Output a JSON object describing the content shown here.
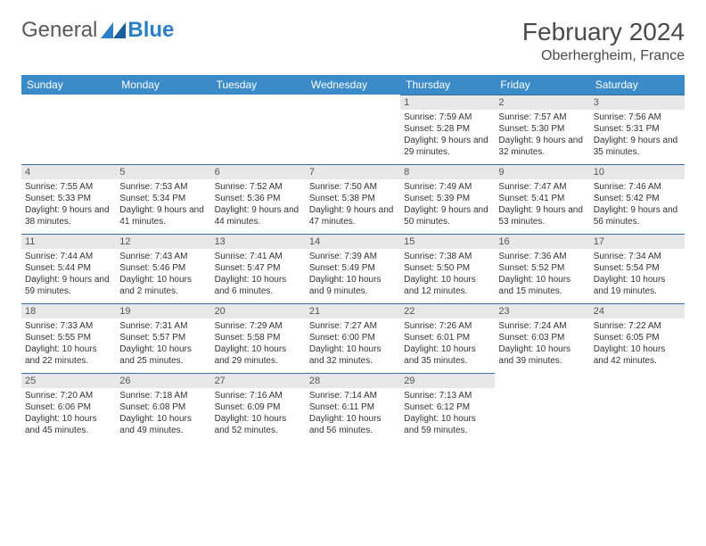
{
  "logo": {
    "text1": "General",
    "text2": "Blue"
  },
  "title": "February 2024",
  "location": "Oberhergheim, France",
  "colors": {
    "header_bg": "#3b8bc9",
    "header_text": "#ffffff",
    "daynum_bg": "#e8e8e8",
    "cell_border": "#3b6ea0",
    "logo_blue": "#2a7fc9"
  },
  "weekdays": [
    "Sunday",
    "Monday",
    "Tuesday",
    "Wednesday",
    "Thursday",
    "Friday",
    "Saturday"
  ],
  "leading_blanks": 4,
  "days": [
    {
      "n": "1",
      "sunrise": "Sunrise: 7:59 AM",
      "sunset": "Sunset: 5:28 PM",
      "daylight": "Daylight: 9 hours and 29 minutes."
    },
    {
      "n": "2",
      "sunrise": "Sunrise: 7:57 AM",
      "sunset": "Sunset: 5:30 PM",
      "daylight": "Daylight: 9 hours and 32 minutes."
    },
    {
      "n": "3",
      "sunrise": "Sunrise: 7:56 AM",
      "sunset": "Sunset: 5:31 PM",
      "daylight": "Daylight: 9 hours and 35 minutes."
    },
    {
      "n": "4",
      "sunrise": "Sunrise: 7:55 AM",
      "sunset": "Sunset: 5:33 PM",
      "daylight": "Daylight: 9 hours and 38 minutes."
    },
    {
      "n": "5",
      "sunrise": "Sunrise: 7:53 AM",
      "sunset": "Sunset: 5:34 PM",
      "daylight": "Daylight: 9 hours and 41 minutes."
    },
    {
      "n": "6",
      "sunrise": "Sunrise: 7:52 AM",
      "sunset": "Sunset: 5:36 PM",
      "daylight": "Daylight: 9 hours and 44 minutes."
    },
    {
      "n": "7",
      "sunrise": "Sunrise: 7:50 AM",
      "sunset": "Sunset: 5:38 PM",
      "daylight": "Daylight: 9 hours and 47 minutes."
    },
    {
      "n": "8",
      "sunrise": "Sunrise: 7:49 AM",
      "sunset": "Sunset: 5:39 PM",
      "daylight": "Daylight: 9 hours and 50 minutes."
    },
    {
      "n": "9",
      "sunrise": "Sunrise: 7:47 AM",
      "sunset": "Sunset: 5:41 PM",
      "daylight": "Daylight: 9 hours and 53 minutes."
    },
    {
      "n": "10",
      "sunrise": "Sunrise: 7:46 AM",
      "sunset": "Sunset: 5:42 PM",
      "daylight": "Daylight: 9 hours and 56 minutes."
    },
    {
      "n": "11",
      "sunrise": "Sunrise: 7:44 AM",
      "sunset": "Sunset: 5:44 PM",
      "daylight": "Daylight: 9 hours and 59 minutes."
    },
    {
      "n": "12",
      "sunrise": "Sunrise: 7:43 AM",
      "sunset": "Sunset: 5:46 PM",
      "daylight": "Daylight: 10 hours and 2 minutes."
    },
    {
      "n": "13",
      "sunrise": "Sunrise: 7:41 AM",
      "sunset": "Sunset: 5:47 PM",
      "daylight": "Daylight: 10 hours and 6 minutes."
    },
    {
      "n": "14",
      "sunrise": "Sunrise: 7:39 AM",
      "sunset": "Sunset: 5:49 PM",
      "daylight": "Daylight: 10 hours and 9 minutes."
    },
    {
      "n": "15",
      "sunrise": "Sunrise: 7:38 AM",
      "sunset": "Sunset: 5:50 PM",
      "daylight": "Daylight: 10 hours and 12 minutes."
    },
    {
      "n": "16",
      "sunrise": "Sunrise: 7:36 AM",
      "sunset": "Sunset: 5:52 PM",
      "daylight": "Daylight: 10 hours and 15 minutes."
    },
    {
      "n": "17",
      "sunrise": "Sunrise: 7:34 AM",
      "sunset": "Sunset: 5:54 PM",
      "daylight": "Daylight: 10 hours and 19 minutes."
    },
    {
      "n": "18",
      "sunrise": "Sunrise: 7:33 AM",
      "sunset": "Sunset: 5:55 PM",
      "daylight": "Daylight: 10 hours and 22 minutes."
    },
    {
      "n": "19",
      "sunrise": "Sunrise: 7:31 AM",
      "sunset": "Sunset: 5:57 PM",
      "daylight": "Daylight: 10 hours and 25 minutes."
    },
    {
      "n": "20",
      "sunrise": "Sunrise: 7:29 AM",
      "sunset": "Sunset: 5:58 PM",
      "daylight": "Daylight: 10 hours and 29 minutes."
    },
    {
      "n": "21",
      "sunrise": "Sunrise: 7:27 AM",
      "sunset": "Sunset: 6:00 PM",
      "daylight": "Daylight: 10 hours and 32 minutes."
    },
    {
      "n": "22",
      "sunrise": "Sunrise: 7:26 AM",
      "sunset": "Sunset: 6:01 PM",
      "daylight": "Daylight: 10 hours and 35 minutes."
    },
    {
      "n": "23",
      "sunrise": "Sunrise: 7:24 AM",
      "sunset": "Sunset: 6:03 PM",
      "daylight": "Daylight: 10 hours and 39 minutes."
    },
    {
      "n": "24",
      "sunrise": "Sunrise: 7:22 AM",
      "sunset": "Sunset: 6:05 PM",
      "daylight": "Daylight: 10 hours and 42 minutes."
    },
    {
      "n": "25",
      "sunrise": "Sunrise: 7:20 AM",
      "sunset": "Sunset: 6:06 PM",
      "daylight": "Daylight: 10 hours and 45 minutes."
    },
    {
      "n": "26",
      "sunrise": "Sunrise: 7:18 AM",
      "sunset": "Sunset: 6:08 PM",
      "daylight": "Daylight: 10 hours and 49 minutes."
    },
    {
      "n": "27",
      "sunrise": "Sunrise: 7:16 AM",
      "sunset": "Sunset: 6:09 PM",
      "daylight": "Daylight: 10 hours and 52 minutes."
    },
    {
      "n": "28",
      "sunrise": "Sunrise: 7:14 AM",
      "sunset": "Sunset: 6:11 PM",
      "daylight": "Daylight: 10 hours and 56 minutes."
    },
    {
      "n": "29",
      "sunrise": "Sunrise: 7:13 AM",
      "sunset": "Sunset: 6:12 PM",
      "daylight": "Daylight: 10 hours and 59 minutes."
    }
  ]
}
